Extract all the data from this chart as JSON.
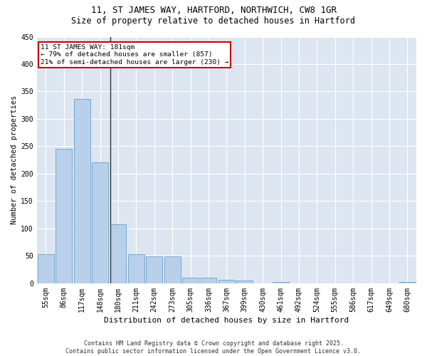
{
  "title": "11, ST JAMES WAY, HARTFORD, NORTHWICH, CW8 1GR",
  "subtitle": "Size of property relative to detached houses in Hartford",
  "xlabel": "Distribution of detached houses by size in Hartford",
  "ylabel": "Number of detached properties",
  "footer_line1": "Contains HM Land Registry data © Crown copyright and database right 2025.",
  "footer_line2": "Contains public sector information licensed under the Open Government Licence v3.0.",
  "categories": [
    "55sqm",
    "86sqm",
    "117sqm",
    "148sqm",
    "180sqm",
    "211sqm",
    "242sqm",
    "273sqm",
    "305sqm",
    "336sqm",
    "367sqm",
    "399sqm",
    "430sqm",
    "461sqm",
    "492sqm",
    "524sqm",
    "555sqm",
    "586sqm",
    "617sqm",
    "649sqm",
    "680sqm"
  ],
  "values": [
    53,
    246,
    336,
    221,
    108,
    53,
    49,
    49,
    10,
    10,
    7,
    5,
    0,
    3,
    0,
    0,
    0,
    0,
    0,
    0,
    3
  ],
  "bar_color": "#b8d0ea",
  "bar_edge_color": "#6aa0cc",
  "background_color": "#dde6f0",
  "vline_color": "#333333",
  "vline_index": 4,
  "annotation_line1": "11 ST JAMES WAY: 181sqm",
  "annotation_line2": "← 79% of detached houses are smaller (857)",
  "annotation_line3": "21% of semi-detached houses are larger (230) →",
  "annotation_box_color": "#ffffff",
  "annotation_box_edge_color": "#cc0000",
  "ylim": [
    0,
    450
  ],
  "yticks": [
    0,
    50,
    100,
    150,
    200,
    250,
    300,
    350,
    400,
    450
  ],
  "title_fontsize": 9,
  "subtitle_fontsize": 8.5,
  "xlabel_fontsize": 8,
  "ylabel_fontsize": 7.5,
  "tick_fontsize": 7,
  "annotation_fontsize": 6.8,
  "footer_fontsize": 6
}
